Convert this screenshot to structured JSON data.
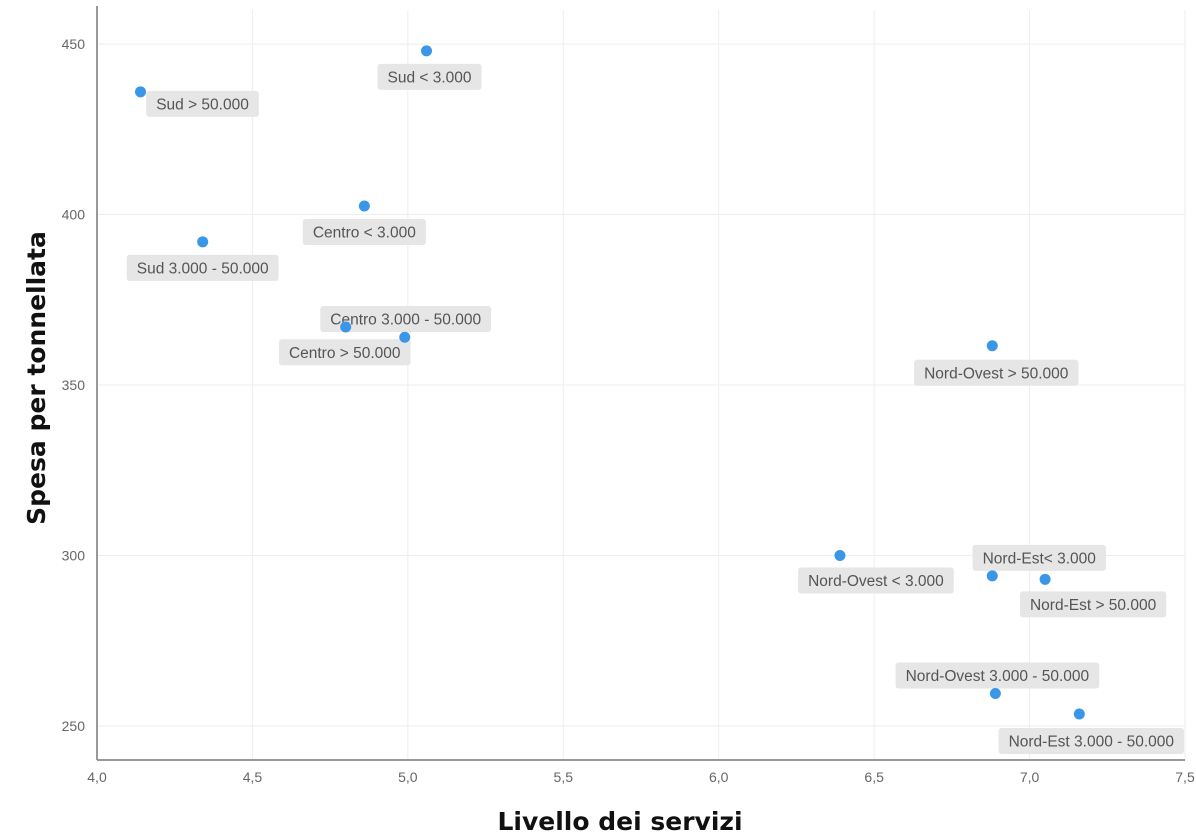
{
  "chart_data": {
    "type": "scatter",
    "title": "",
    "xlabel": "Livello dei servizi",
    "ylabel": "Spesa per tonnellata",
    "xlim": [
      4.0,
      7.5
    ],
    "ylim": [
      240,
      460
    ],
    "x_ticks": [
      "4,0",
      "4,5",
      "5,0",
      "5,5",
      "6,0",
      "6,5",
      "7,0",
      "7,5"
    ],
    "y_ticks": [
      "250",
      "300",
      "350",
      "400",
      "450"
    ],
    "grid": true,
    "point_color": "#3a96e6",
    "points": [
      {
        "label": "Sud > 50.000",
        "x": 4.14,
        "y": 436
      },
      {
        "label": "Sud < 3.000",
        "x": 5.06,
        "y": 448
      },
      {
        "label": "Centro < 3.000",
        "x": 4.86,
        "y": 402.5
      },
      {
        "label": "Sud 3.000 - 50.000",
        "x": 4.34,
        "y": 392
      },
      {
        "label": "Centro 3.000 - 50.000",
        "x": 4.8,
        "y": 367
      },
      {
        "label": "Centro > 50.000",
        "x": 4.99,
        "y": 364
      },
      {
        "label": "Nord-Ovest > 50.000",
        "x": 6.88,
        "y": 361.5
      },
      {
        "label": "Nord-Ovest < 3.000",
        "x": 6.39,
        "y": 300
      },
      {
        "label": "Nord-Est< 3.000",
        "x": 6.88,
        "y": 294
      },
      {
        "label": "Nord-Est > 50.000",
        "x": 7.05,
        "y": 293
      },
      {
        "label": "Nord-Ovest 3.000 - 50.000",
        "x": 6.89,
        "y": 259.5
      },
      {
        "label": "Nord-Est 3.000 - 50.000",
        "x": 7.16,
        "y": 253.5
      }
    ]
  }
}
